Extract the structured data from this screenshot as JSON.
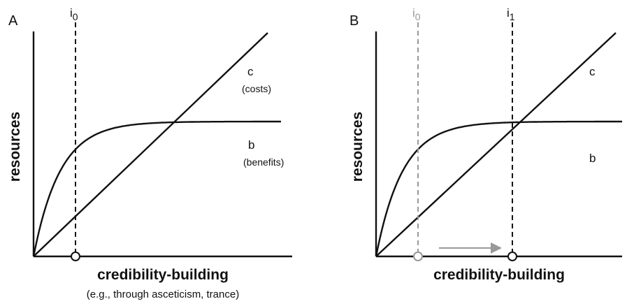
{
  "panels": [
    {
      "label": "A",
      "y_axis": "resources",
      "x_axis": "credibility-building",
      "x_axis_note": "(e.g., through asceticism, trance)",
      "cost_curve": {
        "name": "c",
        "note": "(costs)"
      },
      "benefit_curve": {
        "name": "b",
        "note": "(benefits)"
      },
      "markers": [
        {
          "base": "i",
          "sub": "0"
        }
      ]
    },
    {
      "label": "B",
      "y_axis": "resources",
      "x_axis": "credibility-building",
      "cost_curve": {
        "name": "c"
      },
      "benefit_curve": {
        "name": "b"
      },
      "markers": [
        {
          "base": "i",
          "sub": "0"
        },
        {
          "base": "i",
          "sub": "1"
        }
      ]
    }
  ]
}
